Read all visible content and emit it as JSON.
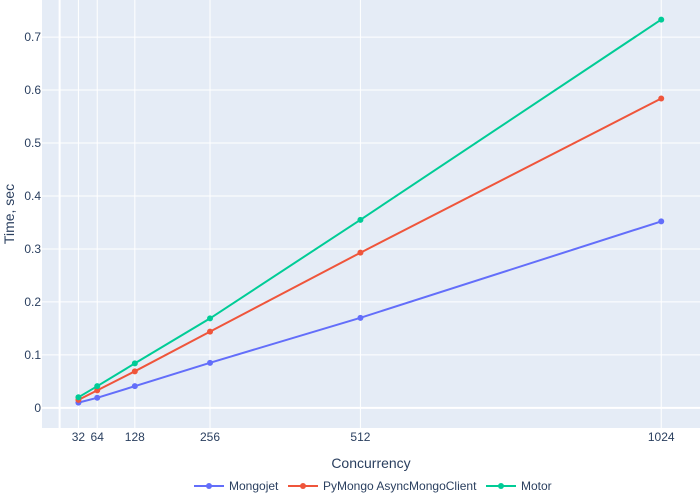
{
  "chart_data": {
    "type": "line",
    "xlabel": "Concurrency",
    "ylabel": "Time, sec",
    "x": [
      32,
      64,
      128,
      256,
      512,
      1024
    ],
    "x_ticks": [
      32,
      64,
      128,
      256,
      512,
      1024
    ],
    "x_tick_labels": [
      "32",
      "64",
      "128",
      "256",
      "512",
      "1024"
    ],
    "xlim": [
      -30,
      1090
    ],
    "ylim": [
      -0.038,
      0.77
    ],
    "y_ticks": [
      0,
      0.1,
      0.2,
      0.3,
      0.4,
      0.5,
      0.6,
      0.7
    ],
    "y_tick_labels": [
      "0",
      "0.1",
      "0.2",
      "0.3",
      "0.4",
      "0.5",
      "0.6",
      "0.7"
    ],
    "grid": true,
    "legend_position": "bottom-center",
    "background_color": "#e5ecf6",
    "series": [
      {
        "name": "Mongojet",
        "color": "#636efa",
        "values": [
          0.01,
          0.019,
          0.041,
          0.085,
          0.17,
          0.352
        ]
      },
      {
        "name": "PyMongo AsyncMongoClient",
        "color": "#ef553b",
        "values": [
          0.015,
          0.033,
          0.069,
          0.144,
          0.293,
          0.584
        ]
      },
      {
        "name": "Motor",
        "color": "#00cc96",
        "values": [
          0.02,
          0.041,
          0.084,
          0.169,
          0.355,
          0.733
        ]
      }
    ]
  }
}
